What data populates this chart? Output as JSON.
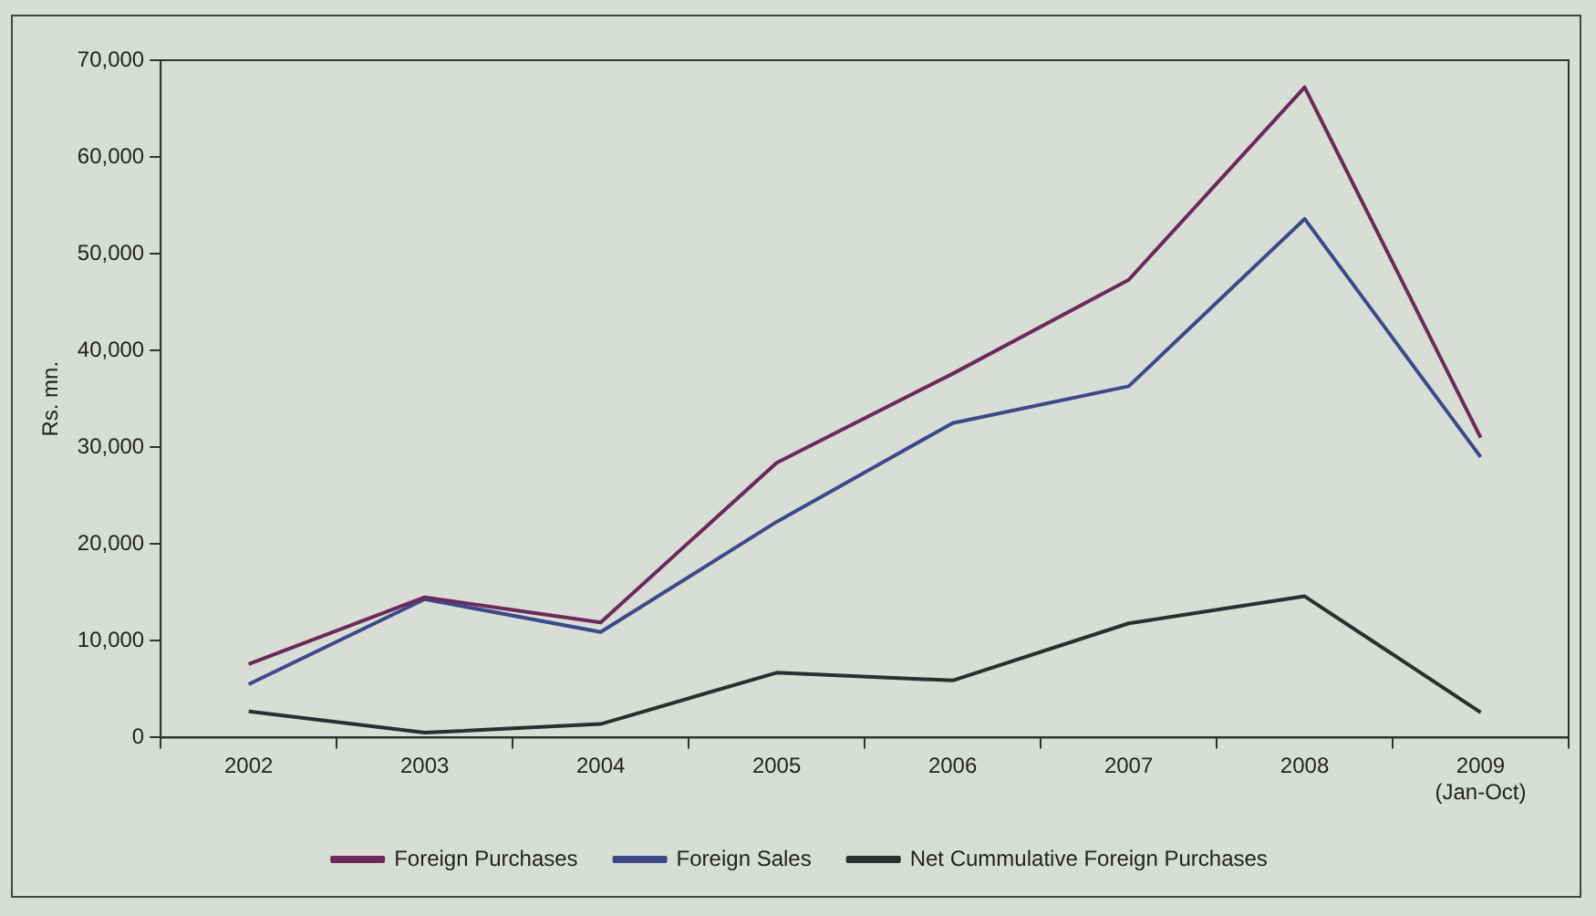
{
  "chart_data": {
    "type": "line",
    "ylabel": "Rs. mn.",
    "categories": [
      "2002",
      "2003",
      "2004",
      "2005",
      "2006",
      "2007",
      "2008",
      "2009\n(Jan-Oct)"
    ],
    "series": [
      {
        "name": "Foreign Purchases",
        "color": "#6b2a5a",
        "values": [
          7600,
          14500,
          11900,
          28400,
          37600,
          47300,
          67200,
          31000
        ]
      },
      {
        "name": "Foreign Sales",
        "color": "#3c4a8a",
        "values": [
          5500,
          14300,
          10900,
          22300,
          32500,
          36300,
          53600,
          29000
        ]
      },
      {
        "name": "Net Cummulative Foreign Purchases",
        "color": "#2a3030",
        "values": [
          2700,
          500,
          1400,
          6700,
          5900,
          11800,
          14600,
          2600
        ]
      }
    ],
    "ylim": [
      0,
      70000
    ],
    "yticks": [
      0,
      {
        "value": 10000,
        "label": "10,000"
      },
      {
        "value": 20000,
        "label": "20,000"
      },
      {
        "value": 30000,
        "label": "30,000"
      },
      {
        "value": 40000,
        "label": "40,000"
      },
      {
        "value": 50000,
        "label": "50,000"
      },
      {
        "value": 60000,
        "label": "60,000"
      },
      {
        "value": 70000,
        "label": "70,000"
      }
    ],
    "grid": false,
    "legend": "bottom",
    "marker": "none",
    "line_style": "solid"
  }
}
